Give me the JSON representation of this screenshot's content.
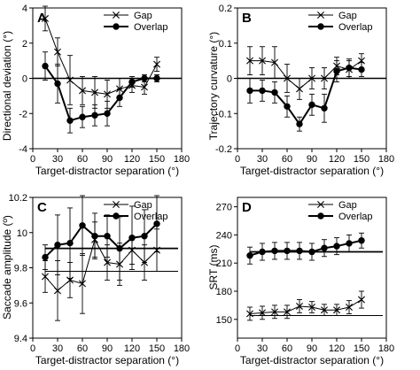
{
  "chart_data": [
    {
      "type": "line",
      "panel_label": "A",
      "xlabel": "Target-distractor separation (°)",
      "ylabel": "Directional deviation (°)",
      "xlim": [
        0,
        180
      ],
      "ylim": [
        -4,
        4
      ],
      "xticks": [
        0,
        30,
        60,
        90,
        120,
        150,
        180
      ],
      "xtick_labels": [
        "0",
        "30",
        "60",
        "90",
        "120",
        "150",
        "180"
      ],
      "yticks": [
        -4,
        -2,
        0,
        2,
        4
      ],
      "ytick_labels": [
        "-4",
        "-2",
        "0",
        "2",
        "4"
      ],
      "reference_line": 0,
      "legend_position": "top-right",
      "x": [
        15,
        30,
        45,
        60,
        75,
        90,
        105,
        120,
        135,
        150
      ],
      "series": [
        {
          "name": "Gap",
          "marker": "x",
          "values": [
            3.4,
            1.5,
            -0.1,
            -0.7,
            -0.8,
            -0.9,
            -0.6,
            -0.4,
            -0.5,
            0.8
          ],
          "errors": [
            0.7,
            0.8,
            1.4,
            0.8,
            0.9,
            0.8,
            0.6,
            0.4,
            0.4,
            0.4
          ]
        },
        {
          "name": "Overlap",
          "marker": "filled-circle",
          "values": [
            0.7,
            -0.3,
            -2.4,
            -2.2,
            -2.1,
            -2.0,
            -1.1,
            -0.2,
            0.0,
            0.0
          ],
          "errors": [
            0.8,
            1.1,
            0.7,
            0.6,
            0.6,
            0.7,
            0.5,
            0.3,
            0.2,
            0.2
          ]
        }
      ]
    },
    {
      "type": "line",
      "panel_label": "B",
      "xlabel": "Target-distractor separation (°)",
      "ylabel": "Trajectory curvature (°)",
      "xlim": [
        0,
        180
      ],
      "ylim": [
        -0.2,
        0.2
      ],
      "xticks": [
        0,
        30,
        60,
        90,
        120,
        150,
        180
      ],
      "xtick_labels": [
        "0",
        "30",
        "60",
        "90",
        "120",
        "150",
        "180"
      ],
      "yticks": [
        -0.2,
        -0.1,
        0,
        0.1,
        0.2
      ],
      "ytick_labels": [
        "-0.2",
        "-0.1",
        "0",
        "0.1",
        "0.2"
      ],
      "reference_line": 0,
      "legend_position": "top-right",
      "x": [
        15,
        30,
        45,
        60,
        75,
        90,
        105,
        120,
        135,
        150
      ],
      "series": [
        {
          "name": "Gap",
          "marker": "x",
          "values": [
            0.05,
            0.05,
            0.045,
            0.0,
            -0.03,
            0.0,
            0.0,
            0.035,
            0.025,
            0.05
          ],
          "errors": [
            0.04,
            0.04,
            0.045,
            0.04,
            0.03,
            0.03,
            0.03,
            0.025,
            0.025,
            0.02
          ]
        },
        {
          "name": "Overlap",
          "marker": "filled-circle",
          "values": [
            -0.035,
            -0.035,
            -0.04,
            -0.08,
            -0.13,
            -0.075,
            -0.085,
            0.02,
            0.03,
            0.025
          ],
          "errors": [
            0.035,
            0.03,
            0.03,
            0.03,
            0.02,
            0.03,
            0.04,
            0.03,
            0.025,
            0.02
          ]
        }
      ]
    },
    {
      "type": "line",
      "panel_label": "C",
      "xlabel": "Target-distractor separation (°)",
      "ylabel": "Saccade amplitude (º)",
      "xlim": [
        0,
        180
      ],
      "ylim": [
        9.4,
        10.2
      ],
      "xticks": [
        0,
        30,
        60,
        90,
        120,
        150,
        180
      ],
      "xtick_labels": [
        "0",
        "30",
        "60",
        "90",
        "120",
        "150",
        "180"
      ],
      "yticks": [
        9.4,
        9.6,
        9.8,
        10.0,
        10.2
      ],
      "ytick_labels": [
        "9.4",
        "9.6",
        "9.8",
        "10",
        "10.2"
      ],
      "reference_lines": [
        {
          "series": "Gap",
          "value": 9.78
        },
        {
          "series": "Overlap",
          "value": 9.91
        }
      ],
      "legend_position": "top-right",
      "x": [
        15,
        30,
        45,
        60,
        75,
        90,
        105,
        120,
        135,
        150
      ],
      "series": [
        {
          "name": "Gap",
          "marker": "x",
          "values": [
            9.75,
            9.67,
            9.73,
            9.71,
            9.96,
            9.83,
            9.82,
            9.9,
            9.83,
            9.9
          ],
          "errors": [
            0.09,
            0.17,
            0.1,
            0.17,
            0.1,
            0.1,
            0.12,
            0.08,
            0.1,
            0.12
          ]
        },
        {
          "name": "Overlap",
          "marker": "filled-circle",
          "values": [
            9.86,
            9.93,
            9.94,
            10.04,
            9.98,
            9.98,
            9.91,
            9.97,
            9.98,
            10.05
          ],
          "errors": [
            0.07,
            0.17,
            0.2,
            0.17,
            0.13,
            0.12,
            0.18,
            0.18,
            0.15,
            0.16
          ]
        }
      ]
    },
    {
      "type": "line",
      "panel_label": "D",
      "xlabel": "Target-distractor separation (°)",
      "ylabel": "SRT (ms)",
      "xlim": [
        0,
        180
      ],
      "ylim": [
        130,
        280
      ],
      "xticks": [
        0,
        30,
        60,
        90,
        120,
        150,
        180
      ],
      "xtick_labels": [
        "0",
        "30",
        "60",
        "90",
        "120",
        "150",
        "180"
      ],
      "yticks": [
        150,
        180,
        210,
        240,
        270
      ],
      "ytick_labels": [
        "150",
        "180",
        "210",
        "240",
        "270"
      ],
      "reference_lines": [
        {
          "series": "Gap",
          "value": 154
        },
        {
          "series": "Overlap",
          "value": 222
        }
      ],
      "legend_position": "top-right",
      "x": [
        15,
        30,
        45,
        60,
        75,
        90,
        105,
        120,
        135,
        150
      ],
      "series": [
        {
          "name": "Gap",
          "marker": "x",
          "values": [
            156,
            157,
            158,
            158,
            164,
            163,
            160,
            160,
            163,
            171
          ],
          "errors": [
            7,
            7,
            7,
            7,
            7,
            6,
            6,
            6,
            7,
            9
          ]
        },
        {
          "name": "Overlap",
          "marker": "filled-circle",
          "values": [
            218,
            222,
            223,
            223,
            223,
            222,
            226,
            228,
            231,
            234
          ],
          "errors": [
            9,
            9,
            9,
            9,
            9,
            9,
            9,
            9,
            9,
            8
          ]
        }
      ]
    }
  ]
}
